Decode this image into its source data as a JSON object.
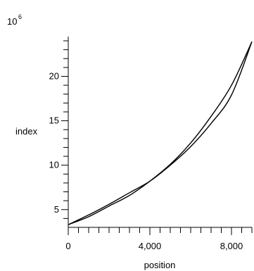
{
  "chart_data": {
    "type": "line",
    "title": "",
    "xlabel": "position",
    "ylabel": "index",
    "y_scale_label": "10",
    "y_scale_exponent": "6",
    "xlim": [
      0,
      9000
    ],
    "ylim": [
      3,
      24
    ],
    "x_major_ticks": [
      {
        "value": 0,
        "label": "0"
      },
      {
        "value": 4000,
        "label": "4,000"
      },
      {
        "value": 8000,
        "label": "8,000"
      }
    ],
    "x_minor_step": 500,
    "y_major_ticks": [
      {
        "value": 5,
        "label": "5"
      },
      {
        "value": 10,
        "label": "10"
      },
      {
        "value": 15,
        "label": "15"
      },
      {
        "value": 20,
        "label": "20"
      }
    ],
    "y_minor_step": 1,
    "grid": false,
    "legend": "none",
    "line_color": "#000000",
    "series": [
      {
        "x": [
          0,
          1000,
          2000,
          3000,
          4000,
          5000,
          6000,
          7000,
          8000,
          9000
        ],
        "values": [
          3.3,
          4.4,
          5.6,
          6.9,
          8.2,
          10.0,
          12.1,
          14.7,
          17.9,
          23.9
        ]
      },
      {
        "x": [
          0,
          1000,
          2000,
          3000,
          4000,
          5000,
          6000,
          7000,
          8000,
          9000
        ],
        "values": [
          3.3,
          4.2,
          5.4,
          6.6,
          8.2,
          10.1,
          12.5,
          15.5,
          19.0,
          23.9
        ]
      }
    ]
  }
}
